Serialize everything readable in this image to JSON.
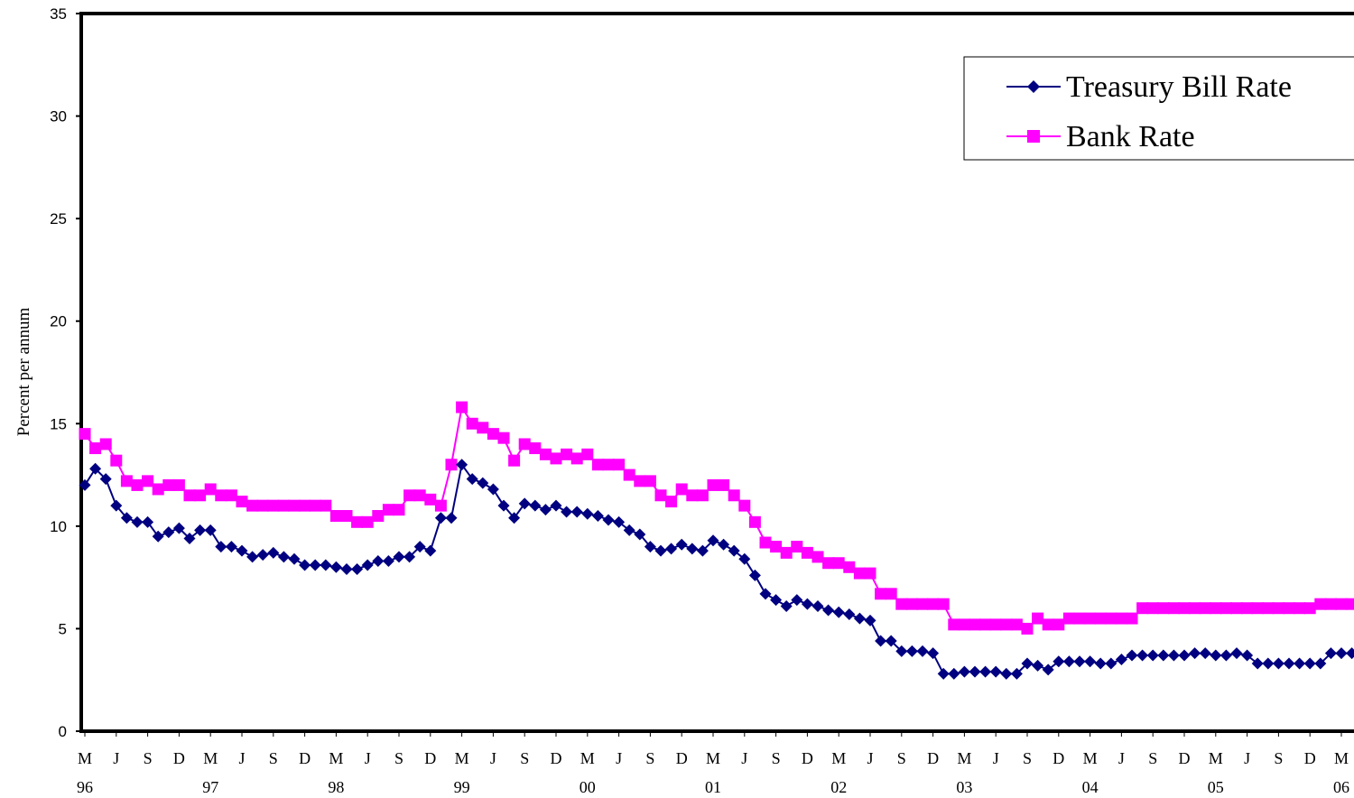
{
  "chart_data": {
    "type": "line",
    "ylabel": "Percent per annum",
    "ylim": [
      0,
      35
    ],
    "yticks": [
      0,
      5,
      10,
      15,
      20,
      25,
      30,
      35
    ],
    "grid": false,
    "legend_position": "top-right",
    "x_month_labels": [
      "M",
      "J",
      "S",
      "D",
      "M",
      "J",
      "S",
      "D",
      "M",
      "J",
      "S",
      "D",
      "M",
      "J",
      "S",
      "D",
      "M",
      "J",
      "S",
      "D",
      "M",
      "J",
      "S",
      "D",
      "M",
      "J",
      "S",
      "D",
      "M",
      "J",
      "S",
      "D",
      "M",
      "J",
      "S",
      "D",
      "M",
      "J",
      "S",
      "D",
      "M"
    ],
    "x_year_labels": [
      "96",
      "97",
      "98",
      "99",
      "00",
      "01",
      "02",
      "03",
      "04",
      "05",
      "06"
    ],
    "series": [
      {
        "name": "Treasury Bill Rate",
        "color": "#000080",
        "marker": "diamond",
        "values": [
          12.0,
          12.8,
          12.3,
          11.0,
          10.4,
          10.2,
          10.2,
          9.5,
          9.7,
          9.9,
          9.4,
          9.8,
          9.8,
          9.0,
          9.0,
          8.8,
          8.5,
          8.6,
          8.7,
          8.5,
          8.4,
          8.1,
          8.1,
          8.1,
          8.0,
          7.9,
          7.9,
          8.1,
          8.3,
          8.3,
          8.5,
          8.5,
          9.0,
          8.8,
          10.4,
          10.4,
          13.0,
          12.3,
          12.1,
          11.8,
          11.0,
          10.4,
          11.1,
          11.0,
          10.8,
          11.0,
          10.7,
          10.7,
          10.6,
          10.5,
          10.3,
          10.2,
          9.8,
          9.6,
          9.0,
          8.8,
          8.9,
          9.1,
          8.9,
          8.8,
          9.3,
          9.1,
          8.8,
          8.4,
          7.6,
          6.7,
          6.4,
          6.1,
          6.4,
          6.2,
          6.1,
          5.9,
          5.8,
          5.7,
          5.5,
          5.4,
          4.4,
          4.4,
          3.9,
          3.9,
          3.9,
          3.8,
          2.8,
          2.8,
          2.9,
          2.9,
          2.9,
          2.9,
          2.8,
          2.8,
          3.3,
          3.2,
          3.0,
          3.4,
          3.4,
          3.4,
          3.4,
          3.3,
          3.3,
          3.5,
          3.7,
          3.7,
          3.7,
          3.7,
          3.7,
          3.7,
          3.8,
          3.8,
          3.7,
          3.7,
          3.8,
          3.7,
          3.3,
          3.3,
          3.3,
          3.3,
          3.3,
          3.3,
          3.3,
          3.8,
          3.8,
          3.8
        ]
      },
      {
        "name": "Bank Rate",
        "color": "#FF00FF",
        "marker": "square",
        "values": [
          14.5,
          13.8,
          14.0,
          13.2,
          12.2,
          12.0,
          12.2,
          11.8,
          12.0,
          12.0,
          11.5,
          11.5,
          11.8,
          11.5,
          11.5,
          11.2,
          11.0,
          11.0,
          11.0,
          11.0,
          11.0,
          11.0,
          11.0,
          11.0,
          10.5,
          10.5,
          10.2,
          10.2,
          10.5,
          10.8,
          10.8,
          11.5,
          11.5,
          11.3,
          11.0,
          13.0,
          15.8,
          15.0,
          14.8,
          14.5,
          14.3,
          13.2,
          14.0,
          13.8,
          13.5,
          13.3,
          13.5,
          13.3,
          13.5,
          13.0,
          13.0,
          13.0,
          12.5,
          12.2,
          12.2,
          11.5,
          11.2,
          11.8,
          11.5,
          11.5,
          12.0,
          12.0,
          11.5,
          11.0,
          10.2,
          9.2,
          9.0,
          8.7,
          9.0,
          8.7,
          8.5,
          8.2,
          8.2,
          8.0,
          7.7,
          7.7,
          6.7,
          6.7,
          6.2,
          6.2,
          6.2,
          6.2,
          6.2,
          5.2,
          5.2,
          5.2,
          5.2,
          5.2,
          5.2,
          5.2,
          5.0,
          5.5,
          5.2,
          5.2,
          5.5,
          5.5,
          5.5,
          5.5,
          5.5,
          5.5,
          5.5,
          6.0,
          6.0,
          6.0,
          6.0,
          6.0,
          6.0,
          6.0,
          6.0,
          6.0,
          6.0,
          6.0,
          6.0,
          6.0,
          6.0,
          6.0,
          6.0,
          6.0,
          6.2,
          6.2,
          6.2,
          6.2,
          6.2,
          6.2,
          6.2
        ]
      }
    ]
  }
}
